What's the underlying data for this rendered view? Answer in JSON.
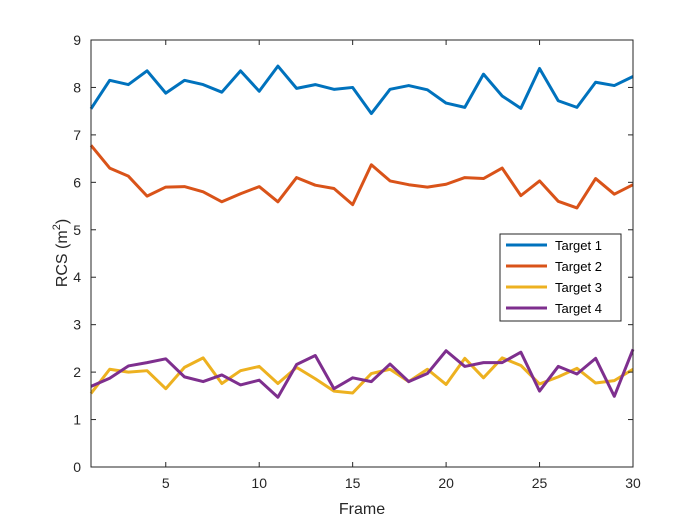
{
  "chart_data": {
    "type": "line",
    "title": "",
    "xlabel": "Frame",
    "ylabel_main": "RCS (m",
    "ylabel_sup": "2",
    "ylabel_close": ")",
    "xlim": [
      1,
      30
    ],
    "ylim": [
      0,
      9
    ],
    "xticks": [
      5,
      10,
      15,
      20,
      25,
      30
    ],
    "yticks": [
      0,
      1,
      2,
      3,
      4,
      5,
      6,
      7,
      8,
      9
    ],
    "grid": false,
    "legend_position": "center-right",
    "x": [
      1,
      2,
      3,
      4,
      5,
      6,
      7,
      8,
      9,
      10,
      11,
      12,
      13,
      14,
      15,
      16,
      17,
      18,
      19,
      20,
      21,
      22,
      23,
      24,
      25,
      26,
      27,
      28,
      29,
      30
    ],
    "series": [
      {
        "name": "Target 1",
        "color": "#0072BD",
        "values": [
          7.55,
          8.15,
          8.06,
          8.35,
          7.88,
          8.15,
          8.06,
          7.9,
          8.35,
          7.92,
          8.45,
          7.98,
          8.06,
          7.96,
          8.0,
          7.45,
          7.96,
          8.04,
          7.95,
          7.67,
          7.58,
          8.28,
          7.82,
          7.56,
          8.4,
          7.72,
          7.58,
          8.11,
          8.04,
          8.23
        ]
      },
      {
        "name": "Target 2",
        "color": "#D95319",
        "values": [
          6.78,
          6.3,
          6.13,
          5.71,
          5.9,
          5.91,
          5.8,
          5.59,
          5.76,
          5.91,
          5.59,
          6.1,
          5.94,
          5.87,
          5.53,
          6.37,
          6.03,
          5.95,
          5.9,
          5.96,
          6.1,
          6.08,
          6.3,
          5.72,
          6.03,
          5.6,
          5.46,
          6.08,
          5.75,
          5.95
        ]
      },
      {
        "name": "Target 3",
        "color": "#EDB120",
        "values": [
          1.55,
          2.06,
          2.0,
          2.03,
          1.65,
          2.1,
          2.3,
          1.76,
          2.03,
          2.12,
          1.76,
          2.1,
          1.86,
          1.6,
          1.56,
          1.97,
          2.06,
          1.8,
          2.06,
          1.74,
          2.29,
          1.88,
          2.3,
          2.14,
          1.75,
          1.9,
          2.08,
          1.77,
          1.82,
          2.06
        ]
      },
      {
        "name": "Target 4",
        "color": "#7E2F8E",
        "values": [
          1.7,
          1.87,
          2.13,
          2.2,
          2.28,
          1.9,
          1.8,
          1.94,
          1.73,
          1.83,
          1.47,
          2.16,
          2.35,
          1.65,
          1.88,
          1.8,
          2.17,
          1.8,
          1.97,
          2.45,
          2.12,
          2.2,
          2.2,
          2.42,
          1.6,
          2.12,
          1.96,
          2.29,
          1.49,
          2.48
        ]
      }
    ]
  }
}
